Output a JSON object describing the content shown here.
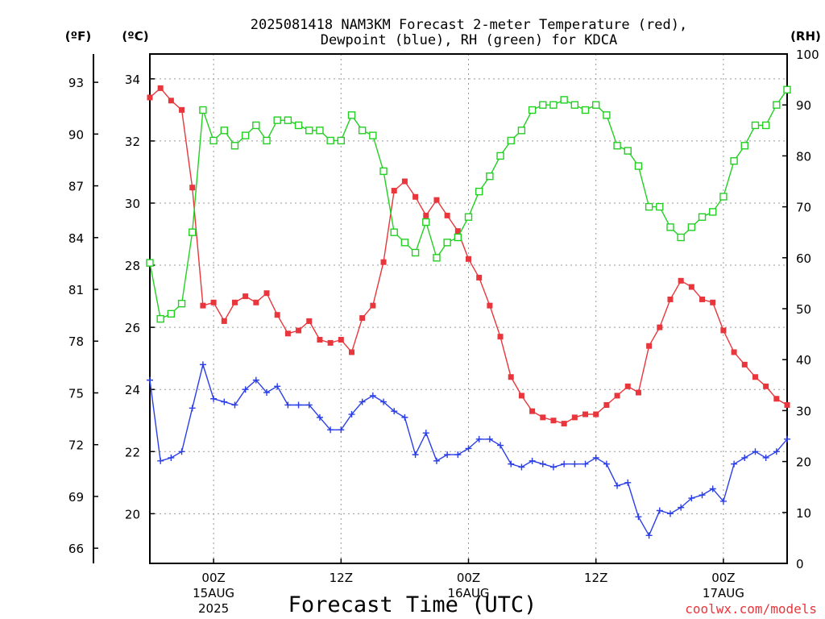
{
  "chart_data": {
    "type": "line",
    "title_line1": "2025081418 NAM3KM Forecast 2-meter Temperature (red),",
    "title_line2": "Dewpoint (blue), RH (green) for KDCA",
    "xlabel": "Forecast Time (UTC)",
    "credit": "coolwx.com/models",
    "unit_f": "(ºF)",
    "unit_c": "(ºC)",
    "unit_rh": "(RH)",
    "x_start_hour": 1,
    "xlim": [
      1,
      61
    ],
    "ylim_c": [
      18.4,
      34.8
    ],
    "ylim_rh": [
      0,
      100
    ],
    "f_ticks": [
      66,
      69,
      72,
      75,
      78,
      81,
      84,
      87,
      90,
      93
    ],
    "c_ticks": [
      20,
      22,
      24,
      26,
      28,
      30,
      32,
      34
    ],
    "rh_ticks": [
      0,
      10,
      20,
      30,
      40,
      50,
      60,
      70,
      80,
      90,
      100
    ],
    "x_ticks": [
      {
        "hour": 7,
        "label": "00Z",
        "date": "15AUG",
        "year": "2025"
      },
      {
        "hour": 19,
        "label": "12Z",
        "date": "",
        "year": ""
      },
      {
        "hour": 31,
        "label": "00Z",
        "date": "16AUG",
        "year": ""
      },
      {
        "hour": 43,
        "label": "12Z",
        "date": "",
        "year": ""
      },
      {
        "hour": 55,
        "label": "00Z",
        "date": "17AUG",
        "year": ""
      }
    ],
    "series": [
      {
        "name": "Temperature",
        "color": "#e8363c",
        "unit": "C",
        "marker": "filled-square",
        "values": [
          33.4,
          33.7,
          33.3,
          33.0,
          30.5,
          26.7,
          26.8,
          26.2,
          26.8,
          27.0,
          26.8,
          27.1,
          26.4,
          25.8,
          25.9,
          26.2,
          25.6,
          25.5,
          25.6,
          25.2,
          26.3,
          26.7,
          28.1,
          30.4,
          30.7,
          30.2,
          29.6,
          30.1,
          29.6,
          29.1,
          28.2,
          27.6,
          26.7,
          25.7,
          24.4,
          23.8,
          23.3,
          23.1,
          23.0,
          22.9,
          23.1,
          23.2,
          23.2,
          23.5,
          23.8,
          24.1,
          23.9,
          25.4,
          26.0,
          26.9,
          27.5,
          27.3,
          26.9,
          26.8,
          25.9,
          25.2,
          24.8,
          24.4,
          24.1,
          23.7,
          23.5
        ]
      },
      {
        "name": "Dewpoint",
        "color": "#2a3ee8",
        "unit": "C",
        "marker": "plus",
        "values": [
          24.3,
          21.7,
          21.8,
          22.0,
          23.4,
          24.8,
          23.7,
          23.6,
          23.5,
          24.0,
          24.3,
          23.9,
          24.1,
          23.5,
          23.5,
          23.5,
          23.1,
          22.7,
          22.7,
          23.2,
          23.6,
          23.8,
          23.6,
          23.3,
          23.1,
          21.9,
          22.6,
          21.7,
          21.9,
          21.9,
          22.1,
          22.4,
          22.4,
          22.2,
          21.6,
          21.5,
          21.7,
          21.6,
          21.5,
          21.6,
          21.6,
          21.6,
          21.8,
          21.6,
          20.9,
          21.0,
          19.9,
          19.3,
          20.1,
          20.0,
          20.2,
          20.5,
          20.6,
          20.8,
          20.4,
          21.6,
          21.8,
          22.0,
          21.8,
          22.0,
          22.4
        ]
      },
      {
        "name": "RH",
        "color": "#22d022",
        "unit": "%",
        "marker": "open-square",
        "values": [
          59,
          48,
          49,
          51,
          65,
          89,
          83,
          85,
          82,
          84,
          86,
          83,
          87,
          87,
          86,
          85,
          85,
          83,
          83,
          88,
          85,
          84,
          77,
          65,
          63,
          61,
          67,
          60,
          63,
          64,
          68,
          73,
          76,
          80,
          83,
          85,
          89,
          90,
          90,
          91,
          90,
          89,
          90,
          88,
          82,
          81,
          78,
          70,
          70,
          66,
          64,
          66,
          68,
          69,
          72,
          79,
          82,
          86,
          86,
          90,
          93
        ]
      }
    ]
  }
}
